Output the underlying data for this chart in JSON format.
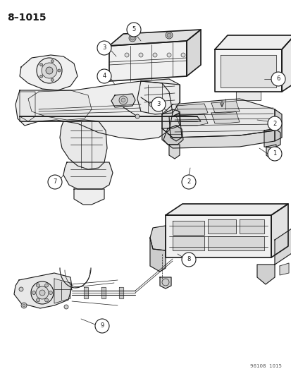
{
  "title": "8–1015",
  "footer": "96108  1015",
  "bg_color": "#ffffff",
  "line_color": "#1a1a1a",
  "fig_width": 4.14,
  "fig_height": 5.33,
  "dpi": 100
}
